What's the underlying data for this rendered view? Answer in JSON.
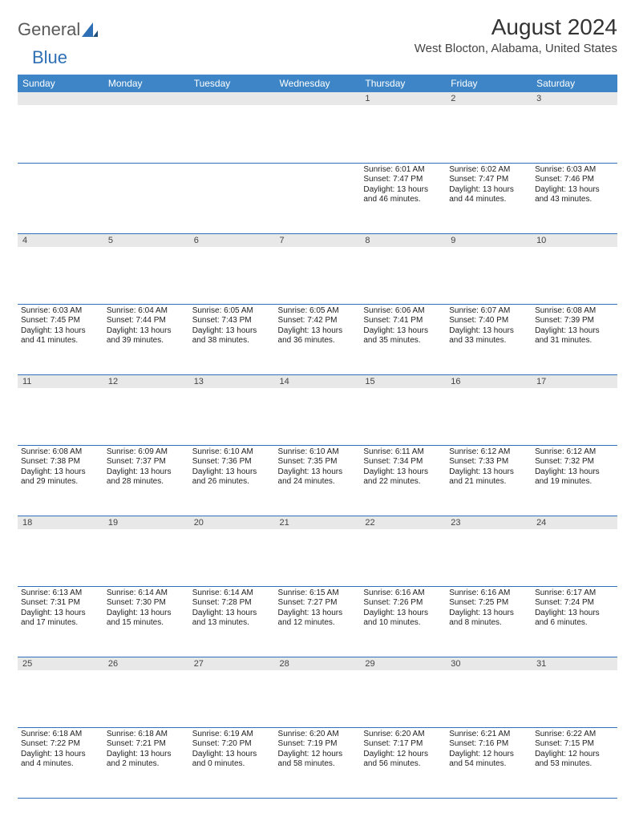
{
  "brand": {
    "part1": "General",
    "part2": "Blue"
  },
  "title": "August 2024",
  "location": "West Blocton, Alabama, United States",
  "dow": [
    "Sunday",
    "Monday",
    "Tuesday",
    "Wednesday",
    "Thursday",
    "Friday",
    "Saturday"
  ],
  "colors": {
    "header_bg": "#3d85c6",
    "header_fg": "#ffffff",
    "daynum_bg": "#e8e8e8",
    "rule": "#2f6fb5",
    "brand_gray": "#5a5a5a",
    "brand_blue": "#2f6fb5"
  },
  "weeks": [
    [
      {
        "n": "",
        "sr": "",
        "ss": "",
        "dl": ""
      },
      {
        "n": "",
        "sr": "",
        "ss": "",
        "dl": ""
      },
      {
        "n": "",
        "sr": "",
        "ss": "",
        "dl": ""
      },
      {
        "n": "",
        "sr": "",
        "ss": "",
        "dl": ""
      },
      {
        "n": "1",
        "sr": "Sunrise: 6:01 AM",
        "ss": "Sunset: 7:47 PM",
        "dl": "Daylight: 13 hours and 46 minutes."
      },
      {
        "n": "2",
        "sr": "Sunrise: 6:02 AM",
        "ss": "Sunset: 7:47 PM",
        "dl": "Daylight: 13 hours and 44 minutes."
      },
      {
        "n": "3",
        "sr": "Sunrise: 6:03 AM",
        "ss": "Sunset: 7:46 PM",
        "dl": "Daylight: 13 hours and 43 minutes."
      }
    ],
    [
      {
        "n": "4",
        "sr": "Sunrise: 6:03 AM",
        "ss": "Sunset: 7:45 PM",
        "dl": "Daylight: 13 hours and 41 minutes."
      },
      {
        "n": "5",
        "sr": "Sunrise: 6:04 AM",
        "ss": "Sunset: 7:44 PM",
        "dl": "Daylight: 13 hours and 39 minutes."
      },
      {
        "n": "6",
        "sr": "Sunrise: 6:05 AM",
        "ss": "Sunset: 7:43 PM",
        "dl": "Daylight: 13 hours and 38 minutes."
      },
      {
        "n": "7",
        "sr": "Sunrise: 6:05 AM",
        "ss": "Sunset: 7:42 PM",
        "dl": "Daylight: 13 hours and 36 minutes."
      },
      {
        "n": "8",
        "sr": "Sunrise: 6:06 AM",
        "ss": "Sunset: 7:41 PM",
        "dl": "Daylight: 13 hours and 35 minutes."
      },
      {
        "n": "9",
        "sr": "Sunrise: 6:07 AM",
        "ss": "Sunset: 7:40 PM",
        "dl": "Daylight: 13 hours and 33 minutes."
      },
      {
        "n": "10",
        "sr": "Sunrise: 6:08 AM",
        "ss": "Sunset: 7:39 PM",
        "dl": "Daylight: 13 hours and 31 minutes."
      }
    ],
    [
      {
        "n": "11",
        "sr": "Sunrise: 6:08 AM",
        "ss": "Sunset: 7:38 PM",
        "dl": "Daylight: 13 hours and 29 minutes."
      },
      {
        "n": "12",
        "sr": "Sunrise: 6:09 AM",
        "ss": "Sunset: 7:37 PM",
        "dl": "Daylight: 13 hours and 28 minutes."
      },
      {
        "n": "13",
        "sr": "Sunrise: 6:10 AM",
        "ss": "Sunset: 7:36 PM",
        "dl": "Daylight: 13 hours and 26 minutes."
      },
      {
        "n": "14",
        "sr": "Sunrise: 6:10 AM",
        "ss": "Sunset: 7:35 PM",
        "dl": "Daylight: 13 hours and 24 minutes."
      },
      {
        "n": "15",
        "sr": "Sunrise: 6:11 AM",
        "ss": "Sunset: 7:34 PM",
        "dl": "Daylight: 13 hours and 22 minutes."
      },
      {
        "n": "16",
        "sr": "Sunrise: 6:12 AM",
        "ss": "Sunset: 7:33 PM",
        "dl": "Daylight: 13 hours and 21 minutes."
      },
      {
        "n": "17",
        "sr": "Sunrise: 6:12 AM",
        "ss": "Sunset: 7:32 PM",
        "dl": "Daylight: 13 hours and 19 minutes."
      }
    ],
    [
      {
        "n": "18",
        "sr": "Sunrise: 6:13 AM",
        "ss": "Sunset: 7:31 PM",
        "dl": "Daylight: 13 hours and 17 minutes."
      },
      {
        "n": "19",
        "sr": "Sunrise: 6:14 AM",
        "ss": "Sunset: 7:30 PM",
        "dl": "Daylight: 13 hours and 15 minutes."
      },
      {
        "n": "20",
        "sr": "Sunrise: 6:14 AM",
        "ss": "Sunset: 7:28 PM",
        "dl": "Daylight: 13 hours and 13 minutes."
      },
      {
        "n": "21",
        "sr": "Sunrise: 6:15 AM",
        "ss": "Sunset: 7:27 PM",
        "dl": "Daylight: 13 hours and 12 minutes."
      },
      {
        "n": "22",
        "sr": "Sunrise: 6:16 AM",
        "ss": "Sunset: 7:26 PM",
        "dl": "Daylight: 13 hours and 10 minutes."
      },
      {
        "n": "23",
        "sr": "Sunrise: 6:16 AM",
        "ss": "Sunset: 7:25 PM",
        "dl": "Daylight: 13 hours and 8 minutes."
      },
      {
        "n": "24",
        "sr": "Sunrise: 6:17 AM",
        "ss": "Sunset: 7:24 PM",
        "dl": "Daylight: 13 hours and 6 minutes."
      }
    ],
    [
      {
        "n": "25",
        "sr": "Sunrise: 6:18 AM",
        "ss": "Sunset: 7:22 PM",
        "dl": "Daylight: 13 hours and 4 minutes."
      },
      {
        "n": "26",
        "sr": "Sunrise: 6:18 AM",
        "ss": "Sunset: 7:21 PM",
        "dl": "Daylight: 13 hours and 2 minutes."
      },
      {
        "n": "27",
        "sr": "Sunrise: 6:19 AM",
        "ss": "Sunset: 7:20 PM",
        "dl": "Daylight: 13 hours and 0 minutes."
      },
      {
        "n": "28",
        "sr": "Sunrise: 6:20 AM",
        "ss": "Sunset: 7:19 PM",
        "dl": "Daylight: 12 hours and 58 minutes."
      },
      {
        "n": "29",
        "sr": "Sunrise: 6:20 AM",
        "ss": "Sunset: 7:17 PM",
        "dl": "Daylight: 12 hours and 56 minutes."
      },
      {
        "n": "30",
        "sr": "Sunrise: 6:21 AM",
        "ss": "Sunset: 7:16 PM",
        "dl": "Daylight: 12 hours and 54 minutes."
      },
      {
        "n": "31",
        "sr": "Sunrise: 6:22 AM",
        "ss": "Sunset: 7:15 PM",
        "dl": "Daylight: 12 hours and 53 minutes."
      }
    ]
  ]
}
